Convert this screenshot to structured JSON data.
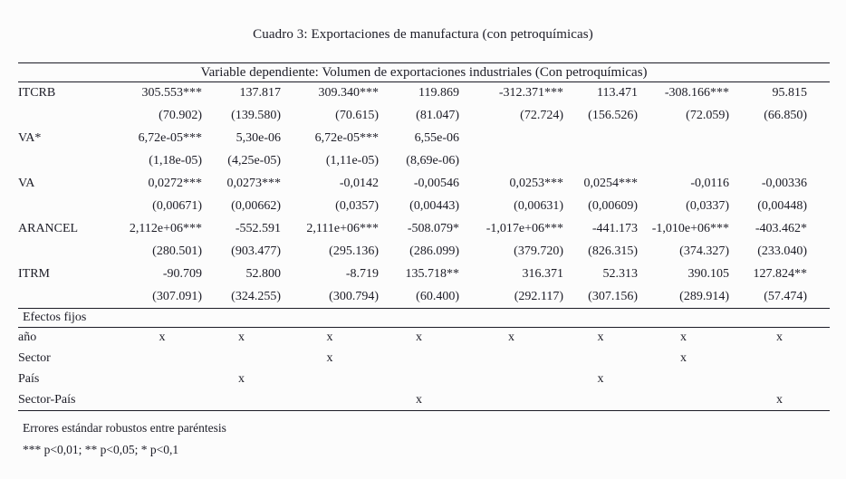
{
  "title": "Cuadro 3: Exportaciones de manufactura (con petroquímicas)",
  "table": {
    "dependent_header": "Variable dependiente: Volumen de exportaciones industriales (Con petroquímicas)",
    "coef_rows": [
      {
        "label": "ITCRB",
        "coefs": [
          "305.553***",
          "137.817",
          "309.340***",
          "119.869",
          "-312.371***",
          "113.471",
          "-308.166***",
          "95.815"
        ],
        "ses": [
          "(70.902)",
          "(139.580)",
          "(70.615)",
          "(81.047)",
          "(72.724)",
          "(156.526)",
          "(72.059)",
          "(66.850)"
        ]
      },
      {
        "label": "VA*",
        "coefs": [
          "6,72e-05***",
          "5,30e-06",
          "6,72e-05***",
          "6,55e-06",
          "",
          "",
          "",
          ""
        ],
        "ses": [
          "(1,18e-05)",
          "(4,25e-05)",
          "(1,11e-05)",
          "(8,69e-06)",
          "",
          "",
          "",
          ""
        ]
      },
      {
        "label": "VA",
        "coefs": [
          "0,0272***",
          "0,0273***",
          "-0,0142",
          "-0,00546",
          "0,0253***",
          "0,0254***",
          "-0,0116",
          "-0,00336"
        ],
        "ses": [
          "(0,00671)",
          "(0,00662)",
          "(0,0357)",
          "(0,00443)",
          "(0,00631)",
          "(0,00609)",
          "(0,0337)",
          "(0,00448)"
        ]
      },
      {
        "label": "ARANCEL",
        "coefs": [
          "2,112e+06***",
          "-552.591",
          "2,111e+06***",
          "-508.079*",
          "-1,017e+06***",
          "-441.173",
          "-1,010e+06***",
          "-403.462*"
        ],
        "ses": [
          "(280.501)",
          "(903.477)",
          "(295.136)",
          "(286.099)",
          "(379.720)",
          "(826.315)",
          "(374.327)",
          "(233.040)"
        ]
      },
      {
        "label": "ITRM",
        "coefs": [
          "-90.709",
          "52.800",
          "-8.719",
          "135.718**",
          "316.371",
          "52.313",
          "390.105",
          "127.824**"
        ],
        "ses": [
          "(307.091)",
          "(324.255)",
          "(300.794)",
          "(60.400)",
          "(292.117)",
          "(307.156)",
          "(289.914)",
          "(57.474)"
        ]
      }
    ],
    "fixed_effects_header": "Efectos fijos",
    "fe_rows": [
      {
        "label": "año",
        "marks": [
          "x",
          "x",
          "x",
          "x",
          "x",
          "x",
          "x",
          "x"
        ]
      },
      {
        "label": "Sector",
        "marks": [
          "",
          "",
          "x",
          "",
          "",
          "",
          "x",
          ""
        ]
      },
      {
        "label": "País",
        "marks": [
          "",
          "x",
          "",
          "",
          "",
          "x",
          "",
          ""
        ]
      },
      {
        "label": "Sector-País",
        "marks": [
          "",
          "",
          "",
          "x",
          "",
          "",
          "",
          "x"
        ]
      }
    ],
    "notes": [
      "Errores estándar robustos entre paréntesis",
      "*** p<0,01; ** p<0,05; * p<0,1"
    ]
  }
}
